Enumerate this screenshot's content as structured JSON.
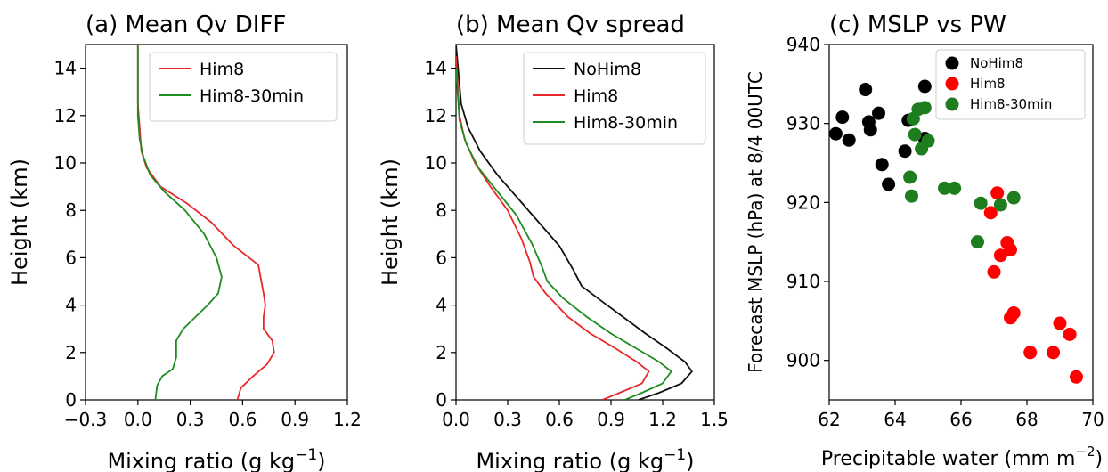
{
  "chart_data": [
    {
      "type": "line",
      "title": "(a) Mean Qv DIFF",
      "xlabel": "Mixing ratio (g kg",
      "xlabel_sup": "−1",
      "xlabel_close": ")",
      "ylabel": "Height (km)",
      "xlim": [
        -0.3,
        1.2
      ],
      "ylim": [
        0,
        15
      ],
      "xticks": [
        -0.3,
        0.0,
        0.3,
        0.6,
        0.9,
        1.2
      ],
      "xtick_labels": [
        "−0.3",
        "0.0",
        "0.3",
        "0.6",
        "0.9",
        "1.2"
      ],
      "yticks": [
        0,
        2,
        4,
        6,
        8,
        10,
        12,
        14
      ],
      "ytick_labels": [
        "0",
        "2",
        "4",
        "6",
        "8",
        "10",
        "12",
        "14"
      ],
      "legend": "top-right",
      "series": [
        {
          "name": "Him8",
          "color": "#e8282b",
          "x": [
            0.57,
            0.59,
            0.66,
            0.74,
            0.78,
            0.77,
            0.72,
            0.72,
            0.73,
            0.72,
            0.69,
            0.55,
            0.42,
            0.28,
            0.13,
            0.05,
            0.02,
            0.01,
            0.0,
            0.0,
            0.0,
            0.0
          ],
          "y": [
            0.0,
            0.5,
            1.0,
            1.5,
            2.0,
            2.5,
            3.0,
            3.5,
            4.0,
            4.5,
            5.7,
            6.5,
            7.5,
            8.3,
            9.0,
            9.8,
            10.5,
            11.5,
            12.5,
            13.5,
            14.5,
            15.0
          ]
        },
        {
          "name": "Him8-30min",
          "color": "#1f8c1f",
          "x": [
            0.1,
            0.11,
            0.14,
            0.2,
            0.22,
            0.22,
            0.26,
            0.33,
            0.4,
            0.46,
            0.48,
            0.45,
            0.38,
            0.27,
            0.15,
            0.07,
            0.03,
            0.01,
            0.0,
            0.0,
            0.0,
            0.0
          ],
          "y": [
            0.0,
            0.6,
            1.0,
            1.3,
            1.8,
            2.5,
            3.0,
            3.5,
            4.0,
            4.5,
            5.2,
            6.0,
            7.0,
            8.0,
            8.8,
            9.5,
            10.3,
            11.0,
            12.0,
            13.0,
            14.0,
            15.0
          ]
        }
      ]
    },
    {
      "type": "line",
      "title": "(b) Mean Qv spread",
      "xlabel": "Mixing ratio (g kg",
      "xlabel_sup": "−1",
      "xlabel_close": ")",
      "ylabel": "Height (km)",
      "xlim": [
        0.0,
        1.5
      ],
      "ylim": [
        0,
        15
      ],
      "xticks": [
        0.0,
        0.3,
        0.6,
        0.9,
        1.2,
        1.5
      ],
      "xtick_labels": [
        "0.0",
        "0.3",
        "0.6",
        "0.9",
        "1.2",
        "1.5"
      ],
      "yticks": [
        0,
        2,
        4,
        6,
        8,
        10,
        12,
        14
      ],
      "ytick_labels": [
        "0",
        "2",
        "4",
        "6",
        "8",
        "10",
        "12",
        "14"
      ],
      "legend": "top-right",
      "series": [
        {
          "name": "NoHim8",
          "color": "#111111",
          "x": [
            1.06,
            1.18,
            1.31,
            1.37,
            1.33,
            1.22,
            1.1,
            0.97,
            0.84,
            0.73,
            0.68,
            0.6,
            0.48,
            0.36,
            0.24,
            0.14,
            0.07,
            0.03,
            0.0
          ],
          "y": [
            0.0,
            0.3,
            0.7,
            1.2,
            1.6,
            2.2,
            2.8,
            3.5,
            4.2,
            4.8,
            5.5,
            6.5,
            7.5,
            8.5,
            9.5,
            10.5,
            11.5,
            12.5,
            15.0
          ]
        },
        {
          "name": "Him8",
          "color": "#e8282b",
          "x": [
            0.85,
            0.95,
            1.08,
            1.12,
            1.05,
            0.92,
            0.78,
            0.65,
            0.52,
            0.45,
            0.43,
            0.38,
            0.3,
            0.2,
            0.11,
            0.05,
            0.02,
            0.0
          ],
          "y": [
            0.0,
            0.3,
            0.7,
            1.2,
            1.6,
            2.2,
            2.8,
            3.5,
            4.5,
            5.2,
            5.8,
            6.8,
            8.0,
            9.0,
            10.0,
            11.0,
            12.0,
            14.5
          ]
        },
        {
          "name": "Him8-30min",
          "color": "#1f8c1f",
          "x": [
            0.98,
            1.08,
            1.2,
            1.25,
            1.18,
            1.04,
            0.9,
            0.76,
            0.62,
            0.53,
            0.5,
            0.44,
            0.35,
            0.24,
            0.13,
            0.06,
            0.02,
            0.0
          ],
          "y": [
            0.0,
            0.3,
            0.7,
            1.2,
            1.6,
            2.2,
            2.8,
            3.5,
            4.3,
            5.0,
            5.6,
            6.6,
            7.8,
            8.8,
            9.8,
            10.8,
            11.8,
            14.0
          ]
        }
      ]
    },
    {
      "type": "scatter",
      "title": "(c) MSLP vs PW",
      "xlabel": "Precipitable water (mm m",
      "xlabel_sup": "−2",
      "xlabel_close": ")",
      "ylabel": "Forecast MSLP (hPa) at 8/4 00UTC",
      "xlim": [
        62,
        70
      ],
      "ylim": [
        895,
        940
      ],
      "xticks": [
        62,
        64,
        66,
        68,
        70
      ],
      "xtick_labels": [
        "62",
        "64",
        "66",
        "68",
        "70"
      ],
      "yticks": [
        900,
        910,
        920,
        930,
        940
      ],
      "ytick_labels": [
        "900",
        "910",
        "920",
        "930",
        "940"
      ],
      "legend": "top-right",
      "series": [
        {
          "name": "NoHim8",
          "color": "#000000",
          "x": [
            62.2,
            62.4,
            62.6,
            63.1,
            63.2,
            63.25,
            63.5,
            63.6,
            63.8,
            64.3,
            64.4,
            64.9,
            64.9
          ],
          "y": [
            928.7,
            930.8,
            927.9,
            934.3,
            930.2,
            929.2,
            931.3,
            924.8,
            922.3,
            926.5,
            930.4,
            934.7,
            928.1
          ]
        },
        {
          "name": "Him8",
          "color": "#ff0000",
          "x": [
            66.9,
            67.0,
            67.1,
            67.2,
            67.4,
            67.5,
            67.5,
            67.6,
            68.1,
            68.8,
            69.0,
            69.3,
            69.5
          ],
          "y": [
            918.7,
            911.2,
            921.2,
            913.3,
            914.9,
            914.0,
            905.4,
            906.0,
            901.0,
            901.0,
            904.7,
            903.3,
            897.9
          ]
        },
        {
          "name": "Him8-30min",
          "color": "#1e7d1e",
          "x": [
            64.45,
            64.5,
            64.55,
            64.6,
            64.7,
            64.8,
            64.9,
            65.0,
            65.5,
            65.8,
            66.5,
            66.6,
            67.2,
            67.6
          ],
          "y": [
            923.2,
            920.8,
            930.6,
            928.6,
            931.8,
            926.8,
            932.0,
            927.8,
            921.8,
            921.8,
            915.0,
            919.9,
            919.7,
            920.6
          ]
        }
      ]
    }
  ]
}
